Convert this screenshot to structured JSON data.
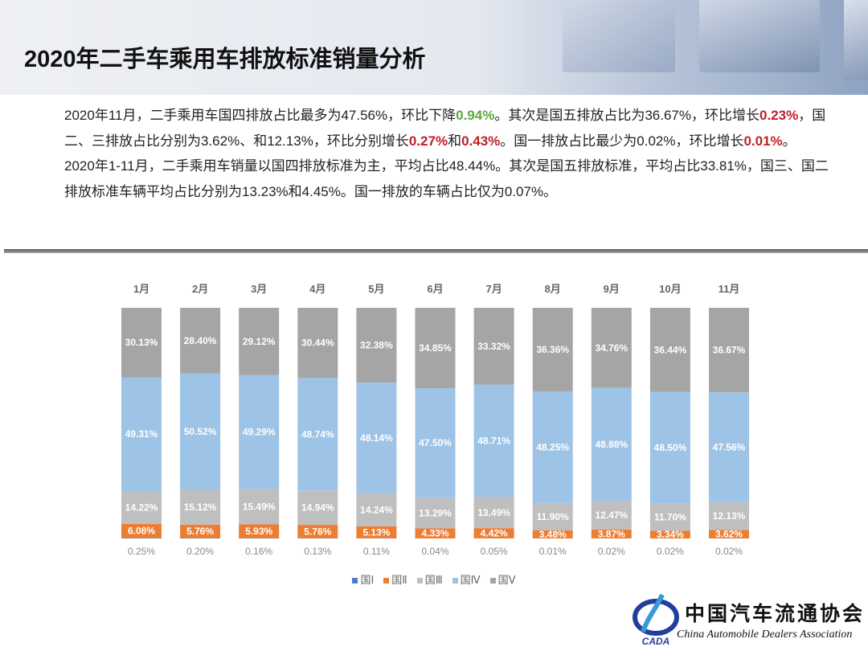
{
  "title": "2020年二手车乘用车排放标准销量分析",
  "para1": {
    "a": "2020年11月，二手乘用车国四排放占比最多为47.56%，环比下降",
    "b": "0.94%",
    "c": "。其次是国五排放占比为36.67%，环比增长",
    "d": "0.23%",
    "e": "，国二、三排放占比分别为3.62%、和12.13%，环比分别增长",
    "f": "0.27%",
    "g": "和",
    "h": "0.43%",
    "i": "。国一排放占比最少为0.02%，环比增长",
    "j": "0.01%",
    "k": "。"
  },
  "para2": "2020年1-11月，二手乘用车销量以国四排放标准为主，平均占比48.44%。其次是国五排放标准，平均占比33.81%，国三、国二排放标准车辆平均占比分别为13.23%和4.45%。国一排放的车辆占比仅为0.07%。",
  "logo": {
    "cn": "中国汽车流通协会",
    "en": "China Automobile Dealers Association",
    "abbr": "CADA"
  },
  "chart_data": {
    "type": "bar",
    "stacked": true,
    "categories": [
      "1月",
      "2月",
      "3月",
      "4月",
      "5月",
      "6月",
      "7月",
      "8月",
      "9月",
      "10月",
      "11月"
    ],
    "series": [
      {
        "name": "国Ⅰ",
        "color": "#4a7ebf",
        "values": [
          0.25,
          0.2,
          0.16,
          0.13,
          0.11,
          0.04,
          0.05,
          0.01,
          0.02,
          0.02,
          0.02
        ]
      },
      {
        "name": "国Ⅱ",
        "color": "#ed7d31",
        "values": [
          6.08,
          5.76,
          5.93,
          5.76,
          5.13,
          4.33,
          4.42,
          3.48,
          3.87,
          3.34,
          3.62
        ]
      },
      {
        "name": "国Ⅲ",
        "color": "#bfbfbf",
        "values": [
          14.22,
          15.12,
          15.49,
          14.94,
          14.24,
          13.29,
          13.49,
          11.9,
          12.47,
          11.7,
          12.13
        ]
      },
      {
        "name": "国Ⅳ",
        "color": "#9dc3e6",
        "values": [
          49.31,
          50.52,
          49.29,
          48.74,
          48.14,
          47.5,
          48.71,
          48.25,
          48.88,
          48.5,
          47.56
        ]
      },
      {
        "name": "国Ⅴ",
        "color": "#a5a5a5",
        "values": [
          30.13,
          28.4,
          29.12,
          30.44,
          32.38,
          34.85,
          33.32,
          36.36,
          34.76,
          36.44,
          36.67
        ]
      }
    ],
    "legend": "bottom",
    "unit": "%"
  }
}
